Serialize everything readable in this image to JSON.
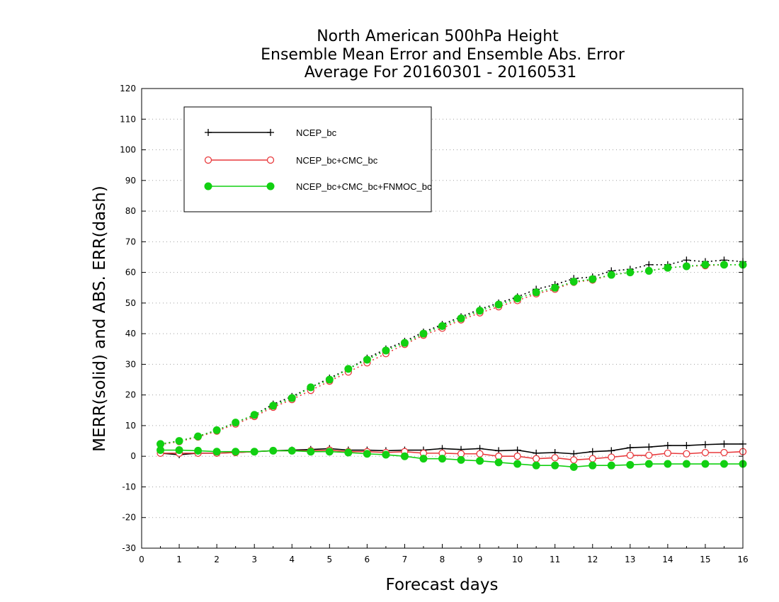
{
  "chart_data": {
    "type": "line",
    "title": [
      "North American 500hPa Height",
      "Ensemble Mean Error and Ensemble Abs. Error",
      "Average For 20160301 - 20160531"
    ],
    "xlabel": "Forecast days",
    "ylabel": "MERR(solid) and ABS. ERR(dash)",
    "xlim": [
      0,
      16
    ],
    "ylim": [
      -30,
      120
    ],
    "xticks": [
      0,
      1,
      2,
      3,
      4,
      5,
      6,
      7,
      8,
      9,
      10,
      11,
      12,
      13,
      14,
      15,
      16
    ],
    "yticks": [
      -30,
      -20,
      -10,
      0,
      10,
      20,
      30,
      40,
      50,
      60,
      70,
      80,
      90,
      100,
      110,
      120
    ],
    "grid": "horizontal-dotted",
    "legend_position": "top-left",
    "x": [
      0.5,
      1,
      1.5,
      2,
      2.5,
      3,
      3.5,
      4,
      4.5,
      5,
      5.5,
      6,
      6.5,
      7,
      7.5,
      8,
      8.5,
      9,
      9.5,
      10,
      10.5,
      11,
      11.5,
      12,
      12.5,
      13,
      13.5,
      14,
      14.5,
      15,
      15.5,
      16
    ],
    "series": [
      {
        "name": "NCEP_bc",
        "color": "#000000",
        "marker": "plus",
        "merr": [
          1,
          0.5,
          1,
          1,
          1.2,
          1.5,
          1.8,
          2,
          2.2,
          2.5,
          2,
          2,
          1.8,
          2,
          2,
          2.5,
          2.2,
          2.5,
          1.8,
          2,
          1,
          1.2,
          0.8,
          1.5,
          1.8,
          2.8,
          3,
          3.5,
          3.5,
          3.8,
          4,
          4
        ],
        "abserr": [
          4,
          5,
          6.5,
          8.5,
          11,
          13.5,
          17,
          19.5,
          22.5,
          25.5,
          28.5,
          32,
          35,
          37.5,
          40.5,
          43,
          45.5,
          48,
          50,
          52,
          54.5,
          56,
          58,
          58.5,
          60.5,
          61,
          62.5,
          62.5,
          64,
          63.5,
          64,
          63.5
        ]
      },
      {
        "name": "NCEP_bc+CMC_bc",
        "color": "#e8393c",
        "marker": "open-circle",
        "merr": [
          1,
          1,
          1,
          1,
          1.2,
          1.5,
          1.8,
          1.8,
          1.8,
          2,
          1.5,
          1.5,
          1.2,
          1.5,
          1,
          1,
          0.8,
          0.8,
          0,
          0,
          -0.8,
          -0.5,
          -1.2,
          -0.8,
          -0.3,
          0.3,
          0.3,
          1,
          0.8,
          1.2,
          1.2,
          1.5
        ],
        "abserr": [
          3.8,
          4.8,
          6.3,
          8.2,
          10.5,
          13,
          16,
          18.5,
          21.5,
          24.5,
          27.5,
          30.5,
          33.5,
          36.5,
          39.5,
          41.8,
          44.5,
          46.8,
          48.8,
          50.8,
          53,
          54.5,
          56.8,
          57.5,
          59.2,
          60,
          60.5,
          61.5,
          62,
          62.2,
          62.5,
          62.5
        ]
      },
      {
        "name": "NCEP_bc+CMC_bc+FNMOC_bc",
        "color": "#12d012",
        "marker": "filled-circle",
        "merr": [
          2,
          2,
          1.8,
          1.5,
          1.5,
          1.5,
          1.8,
          1.8,
          1.5,
          1.5,
          1.2,
          0.8,
          0.5,
          0,
          -0.8,
          -0.8,
          -1.2,
          -1.5,
          -2,
          -2.5,
          -3,
          -3,
          -3.5,
          -3,
          -3,
          -2.8,
          -2.5,
          -2.5,
          -2.5,
          -2.5,
          -2.5,
          -2.5
        ],
        "abserr": [
          4,
          5,
          6.5,
          8.5,
          11,
          13.5,
          16.5,
          19,
          22.5,
          25,
          28.5,
          31.5,
          34.5,
          37,
          40,
          42.5,
          45,
          47.5,
          49.5,
          51.5,
          53.5,
          55,
          57,
          57.8,
          59.2,
          60,
          60.5,
          61.5,
          62,
          62.5,
          62.5,
          62.5
        ]
      }
    ]
  }
}
